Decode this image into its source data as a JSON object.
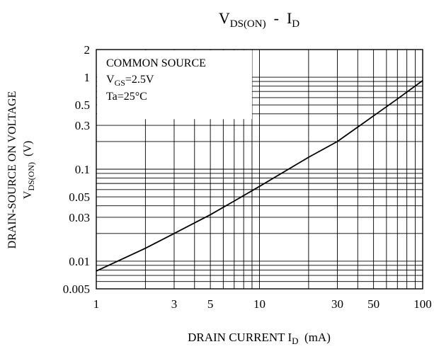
{
  "chart_data": {
    "type": "line",
    "title": {
      "main": "V",
      "sub": "DS(ON)",
      "sep": "  -  ",
      "main2": "I",
      "sub2": "D"
    },
    "xlabel": {
      "main": "DRAIN CURRENT I",
      "sub": "D",
      "unit": "  (mA)"
    },
    "ylabel": {
      "line1": "DRAIN-SOURCE ON VOLTAGE",
      "main": "V",
      "sub": "DS(ON)",
      "unit": "  (V)"
    },
    "x_scale": "log",
    "y_scale": "log",
    "xlim": [
      1,
      100
    ],
    "ylim": [
      0.005,
      2
    ],
    "x_ticks": [
      {
        "value": 1,
        "label": "1"
      },
      {
        "value": 3,
        "label": "3"
      },
      {
        "value": 5,
        "label": "5"
      },
      {
        "value": 10,
        "label": "10"
      },
      {
        "value": 30,
        "label": "30"
      },
      {
        "value": 50,
        "label": "50"
      },
      {
        "value": 100,
        "label": "100"
      }
    ],
    "y_ticks": [
      {
        "value": 0.005,
        "label": "0.005"
      },
      {
        "value": 0.01,
        "label": "0.01"
      },
      {
        "value": 0.03,
        "label": "0.03"
      },
      {
        "value": 0.05,
        "label": "0.05"
      },
      {
        "value": 0.1,
        "label": "0.1"
      },
      {
        "value": 0.3,
        "label": "0.3"
      },
      {
        "value": 0.5,
        "label": "0.5"
      },
      {
        "value": 1,
        "label": "1"
      },
      {
        "value": 2,
        "label": "2"
      }
    ],
    "grid": true,
    "legend_box": {
      "line1": "COMMON SOURCE",
      "line2_main": "V",
      "line2_sub": "GS",
      "line2_rest": "=2.5V",
      "line3": "Ta=25°C",
      "placement": "top-left"
    },
    "series": [
      {
        "x": [
          1,
          2,
          3,
          5,
          7,
          10,
          20,
          30,
          50,
          70,
          100
        ],
        "y": [
          0.0078,
          0.0138,
          0.02,
          0.032,
          0.045,
          0.065,
          0.135,
          0.2,
          0.38,
          0.58,
          0.92
        ]
      }
    ]
  }
}
